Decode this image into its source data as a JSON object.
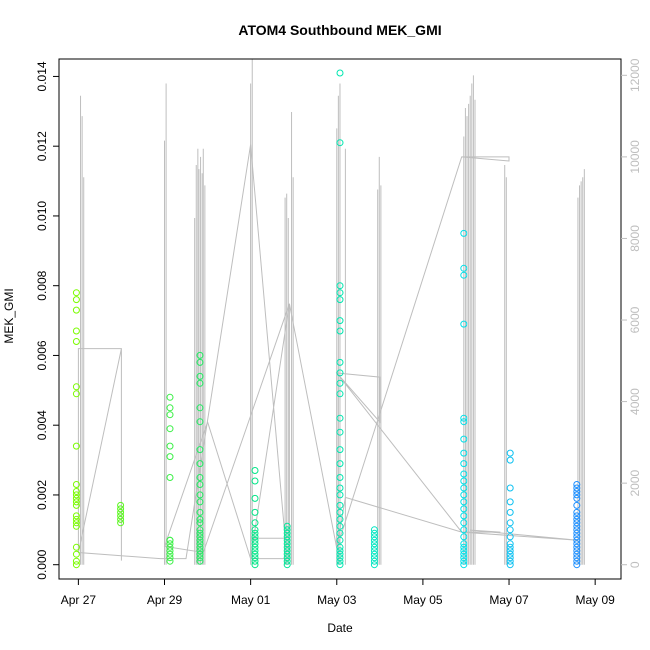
{
  "chart_data": {
    "type": "scatter",
    "title": "ATOM4 Southbound MEK_GMI",
    "xlabel": "Date",
    "ylabel": "MEK_GMI",
    "y2label": "",
    "x_tick_labels": [
      "Apr 27",
      "Apr 29",
      "May 01",
      "May 03",
      "May 05",
      "May 07",
      "May 09"
    ],
    "x_ticks": [
      0,
      2,
      4,
      6,
      8,
      10,
      12
    ],
    "x_axis_note": "x values are days since Apr 27",
    "xlim": [
      -0.45,
      12.6
    ],
    "ylim": [
      -0.00041,
      0.0145
    ],
    "y_ticks": [
      0.0,
      0.002,
      0.004,
      0.006,
      0.008,
      0.01,
      0.012,
      0.014
    ],
    "y_tick_labels": [
      "0.000",
      "0.002",
      "0.004",
      "0.006",
      "0.008",
      "0.010",
      "0.012",
      "0.014"
    ],
    "y2lim": [
      -350,
      12400
    ],
    "y2_ticks": [
      0,
      2000,
      4000,
      6000,
      8000,
      10000,
      12000
    ],
    "y2_tick_labels": [
      "0",
      "2000",
      "4000",
      "6000",
      "8000",
      "10000",
      "12000"
    ],
    "colors": {
      "axis": "#000000",
      "secondary": "#bebebe",
      "points_start": "#7cfc00",
      "points_end": "#1e90ff"
    },
    "series": [
      {
        "kind": "points",
        "clusters": [
          {
            "x": 0.03,
            "values": [
              0.0,
              0.0001,
              0.0003,
              0.0005,
              0.0011,
              0.0012,
              0.0013,
              0.0014,
              0.0017,
              0.0018,
              0.0019,
              0.002,
              0.0021,
              0.0023,
              0.0034,
              0.0049,
              0.0051,
              0.0064,
              0.0067,
              0.0073,
              0.0076,
              0.0078
            ]
          },
          {
            "x": 0.98,
            "values": [
              0.0012,
              0.0013,
              0.0014,
              0.0015,
              0.0016,
              0.0017
            ]
          },
          {
            "x": 2.05,
            "values": [
              0.0001,
              0.0002,
              0.0003,
              0.0004,
              0.0005,
              0.0006,
              0.0007,
              0.0007,
              0.0025,
              0.0031,
              0.0034,
              0.0039,
              0.0043,
              0.0045,
              0.0048
            ]
          },
          {
            "x": 2.85,
            "values": [
              0.0001,
              0.0002,
              0.0003,
              0.0004,
              0.0005,
              0.0006,
              0.0007,
              0.0008,
              0.0009,
              0.001,
              0.0012,
              0.0013,
              0.0015,
              0.0018,
              0.002,
              0.0023,
              0.0025,
              0.0029,
              0.0033,
              0.0041,
              0.0045,
              0.0052,
              0.0054,
              0.0058,
              0.006
            ]
          },
          {
            "x": 4.05,
            "values": [
              0.0,
              0.0001,
              0.0002,
              0.0003,
              0.0004,
              0.0005,
              0.0006,
              0.0007,
              0.0008,
              0.0009,
              0.001,
              0.0012,
              0.0015,
              0.0019,
              0.0024,
              0.0027
            ]
          },
          {
            "x": 4.9,
            "values": [
              0.0,
              0.0001,
              0.0002,
              0.0003,
              0.0004,
              0.0005,
              0.0006,
              0.0007,
              0.0008,
              0.0009,
              0.001,
              0.0011
            ]
          },
          {
            "x": 6.05,
            "values": [
              0.0,
              0.0001,
              0.0002,
              0.0003,
              0.0004,
              0.0005,
              0.0007,
              0.0009,
              0.0011,
              0.0013,
              0.0015,
              0.0017,
              0.002,
              0.0022,
              0.0025,
              0.0029,
              0.0033,
              0.0038,
              0.0042,
              0.0049,
              0.0052,
              0.0055,
              0.0058,
              0.0067,
              0.007,
              0.0076,
              0.0078,
              0.008,
              0.0121,
              0.0141
            ]
          },
          {
            "x": 6.95,
            "values": [
              0.0,
              0.0001,
              0.0002,
              0.0003,
              0.0004,
              0.0005,
              0.0006,
              0.0007,
              0.0008,
              0.0009,
              0.001
            ]
          },
          {
            "x": 8.95,
            "values": [
              0.0,
              0.0001,
              0.0002,
              0.0003,
              0.0004,
              0.0005,
              0.0006,
              0.0008,
              0.001,
              0.0012,
              0.0014,
              0.0016,
              0.0018,
              0.002,
              0.0022,
              0.0024,
              0.0026,
              0.0029,
              0.0032,
              0.0036,
              0.0041,
              0.0042,
              0.0069,
              0.0083,
              0.0085,
              0.0095
            ]
          },
          {
            "x": 9.95,
            "values": [
              0.0,
              0.0001,
              0.0002,
              0.0003,
              0.0004,
              0.0005,
              0.0006,
              0.0008,
              0.001,
              0.0012,
              0.0015,
              0.0018,
              0.0022,
              0.003,
              0.0032
            ]
          },
          {
            "x": 11.6,
            "values": [
              0.0,
              0.0001,
              0.0002,
              0.0003,
              0.0004,
              0.0005,
              0.0006,
              0.0007,
              0.0008,
              0.0009,
              0.001,
              0.0011,
              0.0012,
              0.0013,
              0.0014,
              0.0015,
              0.0017,
              0.0019,
              0.002,
              0.0021,
              0.0022,
              0.0023
            ]
          }
        ]
      },
      {
        "kind": "secondary-line",
        "color": "#bebebe",
        "spikes": [
          {
            "x": 0.05,
            "values": [
              11500,
              11000,
              9500
            ]
          },
          {
            "x": 2.0,
            "values": [
              10400,
              11800
            ]
          },
          {
            "x": 2.7,
            "values": [
              8500,
              9800,
              10200
            ]
          },
          {
            "x": 2.8,
            "values": [
              9700,
              10000,
              9600
            ]
          },
          {
            "x": 2.9,
            "values": [
              10200,
              9300
            ]
          },
          {
            "x": 4.0,
            "values": [
              11800,
              12400
            ]
          },
          {
            "x": 4.8,
            "values": [
              9000,
              9100,
              8500
            ]
          },
          {
            "x": 4.95,
            "values": [
              11100,
              9500
            ]
          },
          {
            "x": 6.0,
            "values": [
              10700,
              11500,
              11800
            ]
          },
          {
            "x": 6.2,
            "values": [
              10200
            ]
          },
          {
            "x": 6.95,
            "values": [
              9200,
              10000,
              9300
            ]
          },
          {
            "x": 8.95,
            "values": [
              10500,
              11200,
              11000,
              11300,
              11500,
              11800,
              12000,
              11400
            ]
          },
          {
            "x": 9.9,
            "values": [
              9800,
              9500
            ]
          },
          {
            "x": 11.6,
            "values": [
              9000,
              9300,
              9400,
              9500,
              9700
            ]
          }
        ],
        "path": [
          [
            0.0,
            300
          ],
          [
            1.0,
            5300
          ],
          [
            1.0,
            100
          ],
          [
            1.0,
            5300
          ],
          [
            0.0,
            5300
          ],
          [
            0.0,
            300
          ],
          [
            1.9,
            150
          ],
          [
            2.5,
            150
          ],
          [
            4.0,
            10300
          ],
          [
            4.0,
            650
          ],
          [
            4.8,
            650
          ],
          [
            4.0,
            10300
          ],
          [
            4.0,
            150
          ],
          [
            3.0,
            3500
          ],
          [
            2.0,
            450
          ],
          [
            2.9,
            300
          ],
          [
            4.9,
            6400
          ],
          [
            4.9,
            150
          ],
          [
            4.0,
            150
          ],
          [
            4.9,
            6400
          ],
          [
            6.0,
            400
          ],
          [
            6.2,
            1650
          ],
          [
            8.9,
            800
          ],
          [
            11.6,
            600
          ],
          [
            9.1,
            850
          ],
          [
            9.8,
            800
          ],
          [
            8.9,
            800
          ],
          [
            6.0,
            4700
          ],
          [
            7.0,
            4600
          ],
          [
            7.0,
            3500
          ],
          [
            6.0,
            4700
          ],
          [
            6.0,
            400
          ],
          [
            8.9,
            10000
          ],
          [
            10.0,
            10000
          ],
          [
            10.0,
            9900
          ],
          [
            8.9,
            10000
          ]
        ]
      }
    ]
  }
}
